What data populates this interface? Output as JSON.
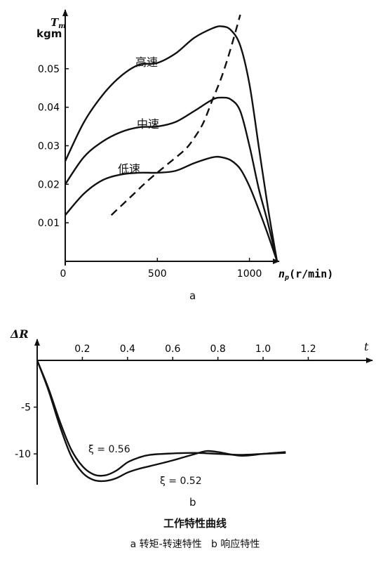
{
  "charts": {
    "a": {
      "panel_label": "a",
      "y_label_symbol": "T",
      "y_label_sub": "m",
      "y_unit": "kgm",
      "x_label_symbol": "n",
      "x_label_sub": "p",
      "x_unit": "(r/min)"
    },
    "b": {
      "panel_label": "b",
      "y_label": "ΔR",
      "x_label": "t"
    }
  },
  "caption": {
    "title": "工作特性曲线",
    "subtitle": "a 转矩-转速特性   b 响应特性"
  },
  "chart_data": [
    {
      "type": "line",
      "xlim": [
        0,
        1150
      ],
      "ylim": [
        0,
        0.062
      ],
      "x_ticks": [
        0,
        500,
        1000
      ],
      "x_tick_labels": [
        "0",
        "500",
        "1000"
      ],
      "y_ticks": [
        0.01,
        0.02,
        0.03,
        0.04,
        0.05
      ],
      "y_tick_labels": [
        "0.01",
        "0.02",
        "0.03",
        "0.04",
        "0.05"
      ],
      "grid": false,
      "legend": "none",
      "series": [
        {
          "name": "高速",
          "x": [
            0,
            100,
            200,
            300,
            400,
            500,
            600,
            700,
            800,
            850,
            900,
            950,
            1000,
            1050,
            1100,
            1150
          ],
          "y": [
            0.026,
            0.036,
            0.043,
            0.048,
            0.051,
            0.0515,
            0.054,
            0.058,
            0.0605,
            0.061,
            0.06,
            0.056,
            0.046,
            0.03,
            0.014,
            0.0
          ],
          "style": "solid"
        },
        {
          "name": "中速",
          "x": [
            0,
            100,
            200,
            300,
            400,
            500,
            600,
            700,
            800,
            850,
            900,
            950,
            1000,
            1050,
            1100,
            1150
          ],
          "y": [
            0.02,
            0.027,
            0.031,
            0.0335,
            0.0348,
            0.035,
            0.0362,
            0.039,
            0.042,
            0.0425,
            0.042,
            0.039,
            0.03,
            0.019,
            0.01,
            0.0
          ],
          "style": "solid"
        },
        {
          "name": "低速",
          "x": [
            0,
            100,
            200,
            300,
            400,
            500,
            600,
            700,
            800,
            850,
            900,
            950,
            1000,
            1050,
            1100,
            1150
          ],
          "y": [
            0.012,
            0.0175,
            0.021,
            0.0225,
            0.023,
            0.023,
            0.0235,
            0.0255,
            0.027,
            0.027,
            0.0262,
            0.024,
            0.0195,
            0.0135,
            0.007,
            0.0
          ],
          "style": "solid"
        },
        {
          "x": [
            250,
            350,
            450,
            550,
            650,
            700,
            750,
            800,
            850,
            900,
            950
          ],
          "y": [
            0.012,
            0.0165,
            0.021,
            0.025,
            0.029,
            0.032,
            0.036,
            0.042,
            0.048,
            0.0555,
            0.064
          ],
          "style": "dashed"
        }
      ]
    },
    {
      "type": "line",
      "xlim": [
        0,
        1.45
      ],
      "ylim": [
        -13,
        0
      ],
      "x_ticks": [
        0.2,
        0.4,
        0.6,
        0.8,
        1.0,
        1.2
      ],
      "x_tick_labels": [
        "0.2",
        "0.4",
        "0.6",
        "0.8",
        "1.0",
        "1.2"
      ],
      "y_ticks": [
        -5,
        -10
      ],
      "y_tick_labels": [
        "-5",
        "-10"
      ],
      "grid": false,
      "legend": "none",
      "series": [
        {
          "name": "ξ = 0.56",
          "x": [
            0,
            0.05,
            0.1,
            0.15,
            0.2,
            0.25,
            0.3,
            0.35,
            0.4,
            0.45,
            0.5,
            0.6,
            0.7,
            0.8,
            0.9,
            1.0,
            1.1
          ],
          "y": [
            0,
            -3.0,
            -6.5,
            -9.5,
            -11.3,
            -12.2,
            -12.3,
            -11.8,
            -10.9,
            -10.4,
            -10.1,
            -9.95,
            -9.9,
            -10.0,
            -10.1,
            -10.0,
            -9.9
          ]
        },
        {
          "name": "ξ = 0.52",
          "x": [
            0,
            0.05,
            0.1,
            0.15,
            0.2,
            0.25,
            0.3,
            0.35,
            0.4,
            0.45,
            0.5,
            0.6,
            0.7,
            0.75,
            0.8,
            0.9,
            1.0,
            1.1
          ],
          "y": [
            0,
            -3.2,
            -7.0,
            -10.2,
            -12.0,
            -12.8,
            -12.9,
            -12.6,
            -12.0,
            -11.6,
            -11.3,
            -10.7,
            -10.0,
            -9.7,
            -9.8,
            -10.2,
            -10.0,
            -9.8
          ]
        }
      ]
    }
  ]
}
